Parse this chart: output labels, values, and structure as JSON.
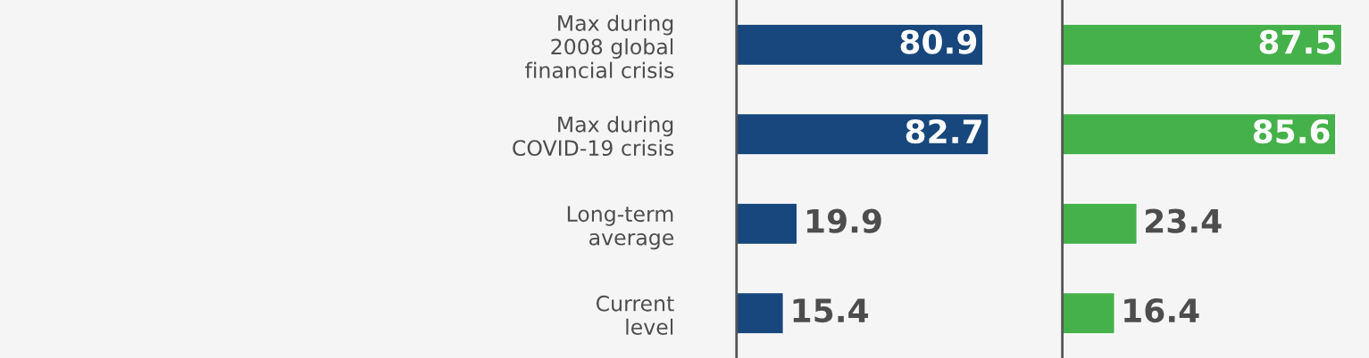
{
  "chart_data": [
    {
      "type": "bar",
      "orientation": "horizontal",
      "categories": [
        "Max during\n2008 global\nfinancial crisis",
        "Max during\nCOVID-19 crisis",
        "Long-term\naverage",
        "Current\nlevel"
      ],
      "values": [
        80.9,
        82.7,
        19.9,
        15.4
      ],
      "color": "#17477c",
      "xlim": [
        0,
        106
      ],
      "data_labels": true,
      "tick_labels": "y",
      "grid": false
    },
    {
      "type": "bar",
      "orientation": "horizontal",
      "categories": [
        null,
        null,
        null,
        null
      ],
      "values": [
        87.5,
        85.6,
        23.4,
        16.4
      ],
      "color": "#45b14a",
      "xlim": [
        0,
        96
      ],
      "data_labels": true,
      "tick_labels": false,
      "grid": false
    }
  ]
}
